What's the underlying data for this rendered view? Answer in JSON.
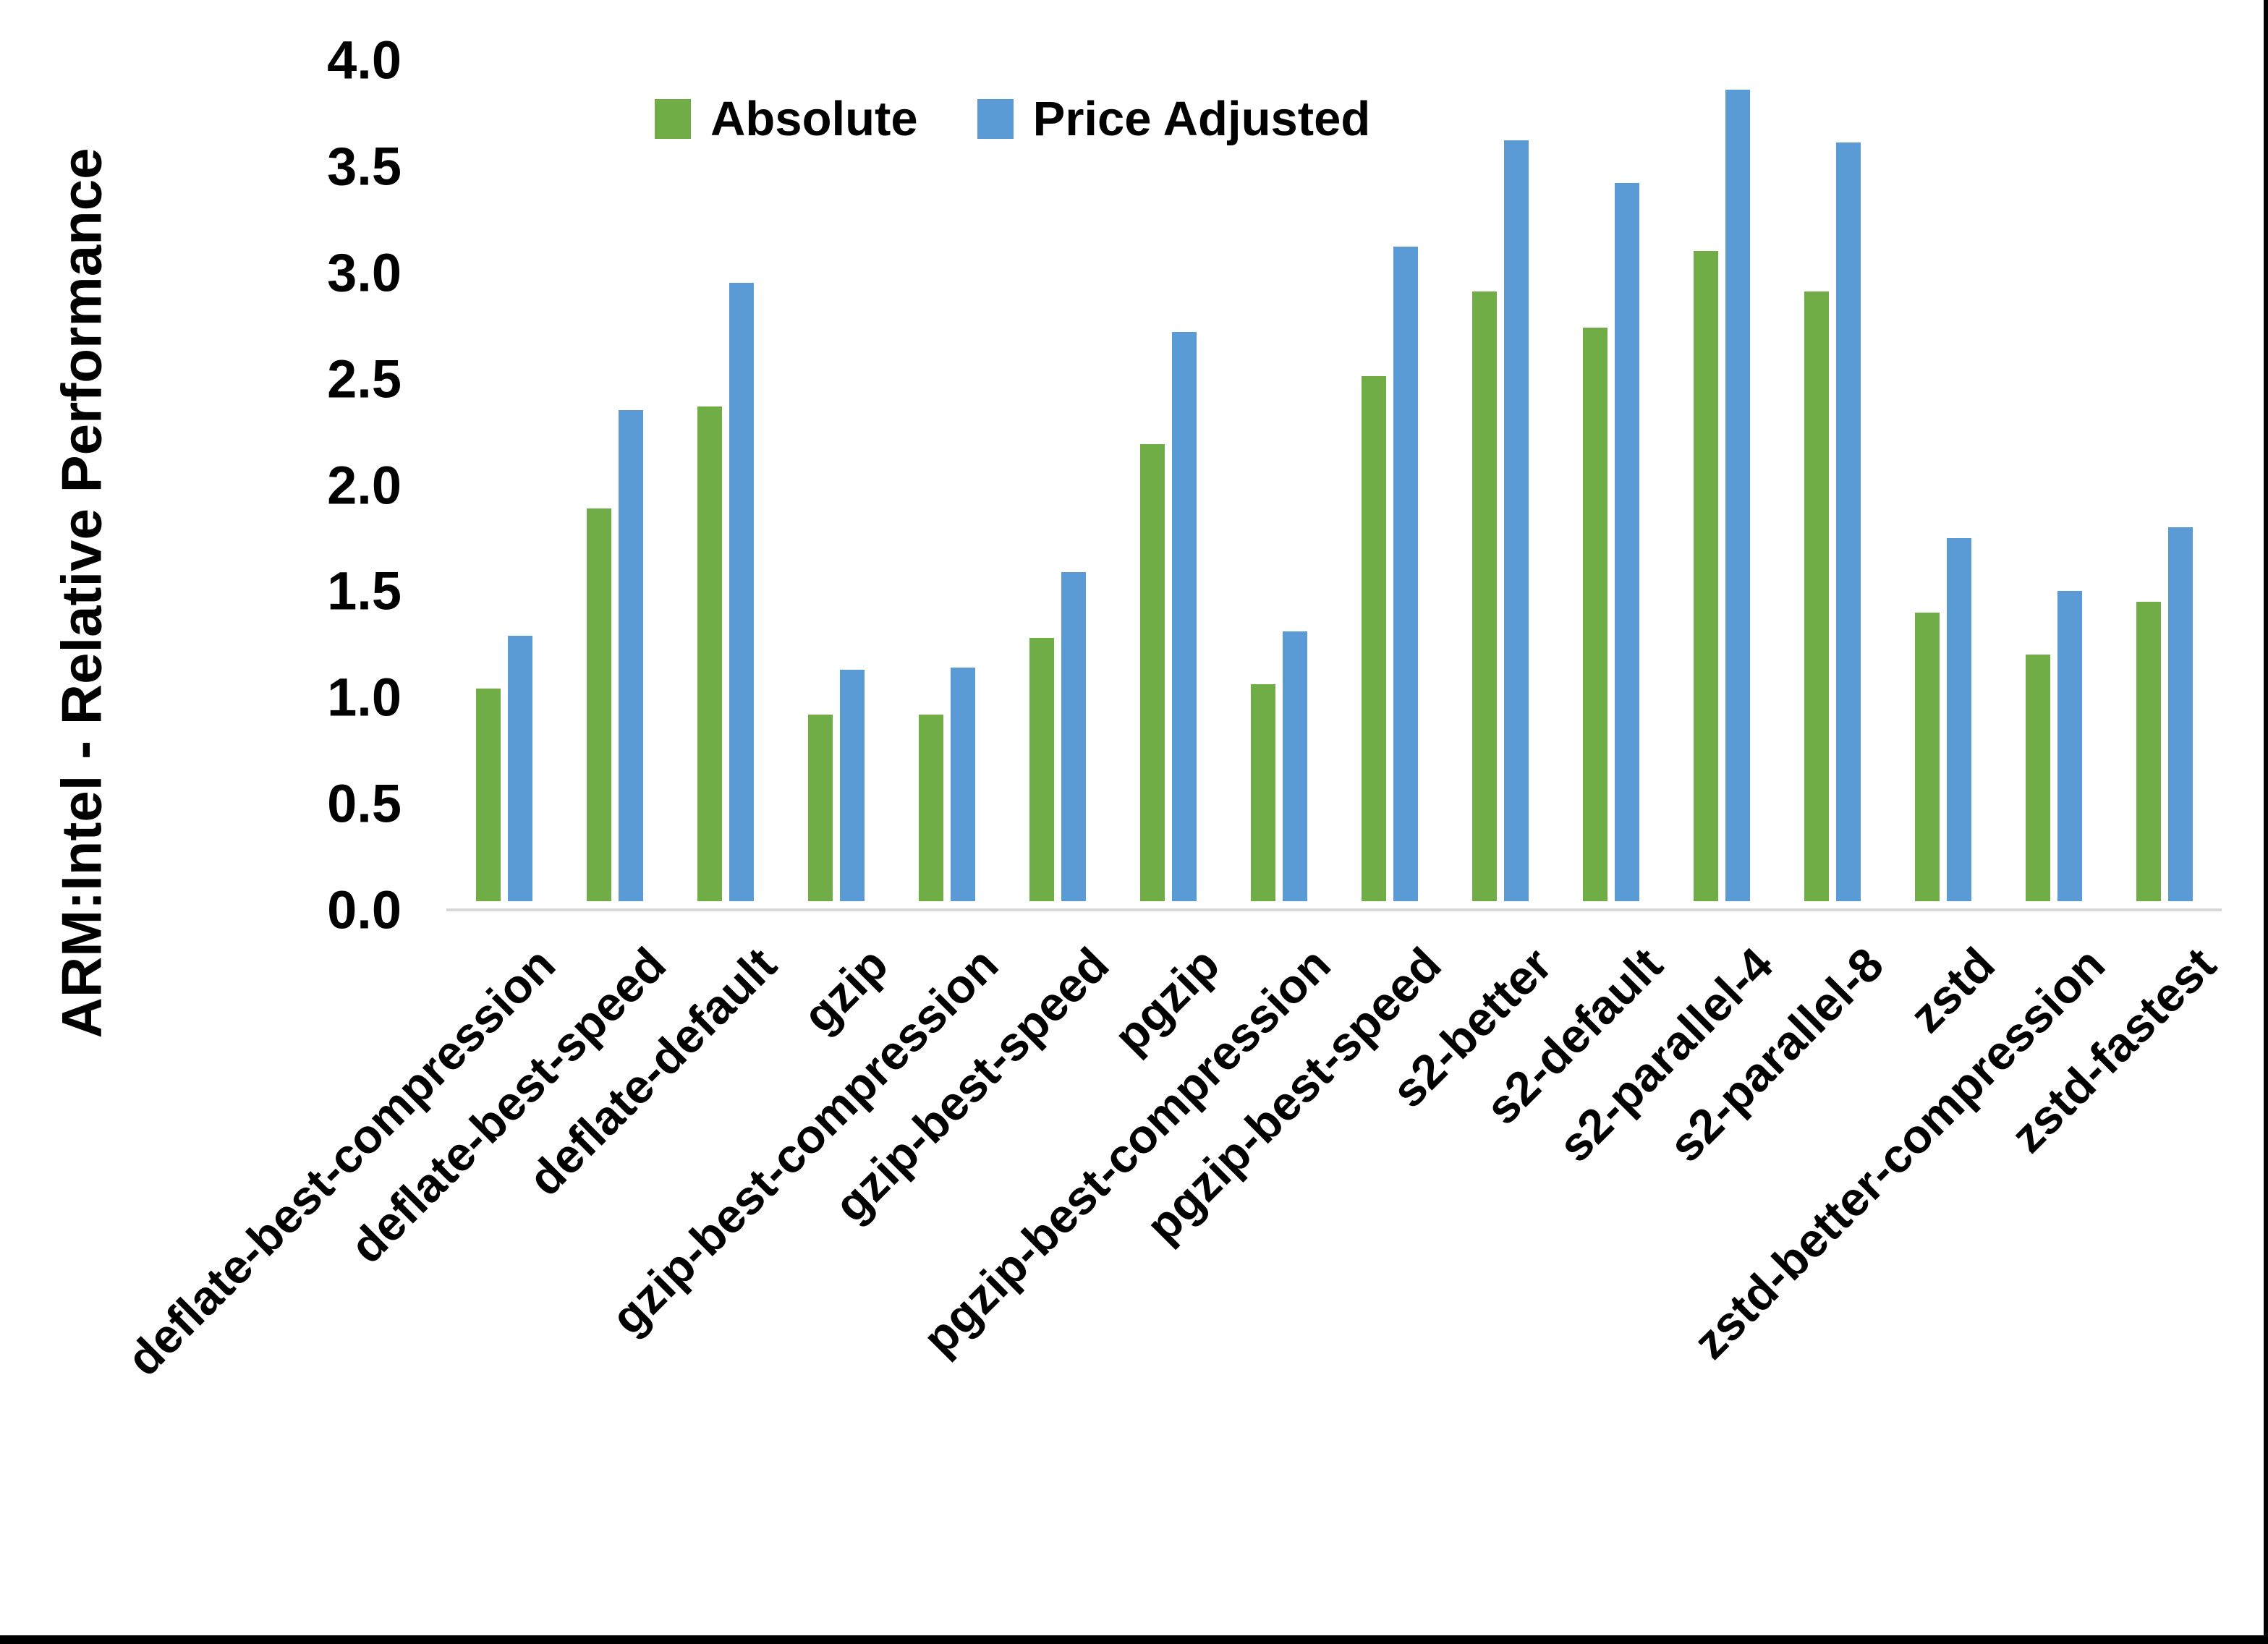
{
  "page": {
    "background": "#ffffff",
    "frame_border_color": "#000000",
    "axis_line_color": "#d9d9d9",
    "text_color": "#000000"
  },
  "y_axis": {
    "title": "ARM:Intel - Relative Performance",
    "ticks": [
      "0.0",
      "0.5",
      "1.0",
      "1.5",
      "2.0",
      "2.5",
      "3.0",
      "3.5",
      "4.0"
    ]
  },
  "legend": {
    "items": [
      {
        "label": "Absolute",
        "color": "#70AD47"
      },
      {
        "label": "Price Adjusted",
        "color": "#5B9BD5"
      }
    ]
  },
  "chart_data": {
    "type": "bar",
    "title": "",
    "xlabel": "",
    "ylabel": "ARM:Intel - Relative Performance",
    "ylim": [
      0,
      4
    ],
    "ytick_step": 0.5,
    "grid": false,
    "legend_position": "top-center",
    "categories": [
      "deflate-best-compression",
      "deflate-best-speed",
      "deflate-default",
      "gzip",
      "gzip-best-compression",
      "gzip-best-speed",
      "pgzip",
      "pgzip-best-compression",
      "pgzip-best-speed",
      "s2-better",
      "s2-default",
      "s2-parallel-4",
      "s2-parallel-8",
      "zstd",
      "zstd-better-compression",
      "zstd-fastest"
    ],
    "series": [
      {
        "name": "Absolute",
        "color": "#70AD47",
        "values": [
          1.0,
          1.85,
          2.33,
          0.88,
          0.88,
          1.24,
          2.15,
          1.02,
          2.47,
          2.87,
          2.7,
          3.06,
          2.87,
          1.36,
          1.16,
          1.41
        ]
      },
      {
        "name": "Price Adjusted",
        "color": "#5B9BD5",
        "values": [
          1.25,
          2.31,
          2.91,
          1.09,
          1.1,
          1.55,
          2.68,
          1.27,
          3.08,
          3.58,
          3.38,
          3.82,
          3.57,
          1.71,
          1.46,
          1.76
        ]
      }
    ]
  }
}
